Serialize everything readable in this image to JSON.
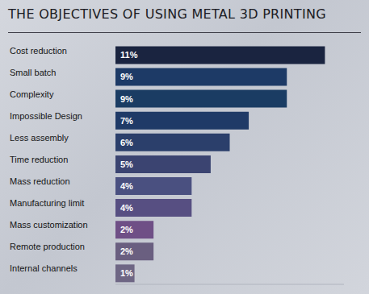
{
  "chart_data": {
    "type": "bar",
    "title": "THE OBJECTIVES OF USING METAL 3D PRINTING",
    "orientation": "horizontal",
    "categories": [
      "Cost reduction",
      "Small batch",
      "Complexity",
      "Impossible Design",
      "Less assembly",
      "Time reduction",
      "Mass reduction",
      "Manufacturing limit",
      "Mass customization",
      "Remote production",
      "Internal channels"
    ],
    "values": [
      11,
      9,
      9,
      7,
      6,
      5,
      4,
      4,
      2,
      2,
      1
    ],
    "value_labels": [
      "11%",
      "9%",
      "9%",
      "7%",
      "6%",
      "5%",
      "4%",
      "4%",
      "2%",
      "2%",
      "1%"
    ],
    "colors": [
      "#1a2440",
      "#1d3a66",
      "#1a3c63",
      "#1f3a67",
      "#2b3f6b",
      "#3b4471",
      "#4a5080",
      "#574f82",
      "#6f4f86",
      "#6a5f80",
      "#6e6684"
    ],
    "xlim": [
      0,
      12
    ],
    "data_labels": true,
    "tick_labels": "y",
    "grid": false
  }
}
